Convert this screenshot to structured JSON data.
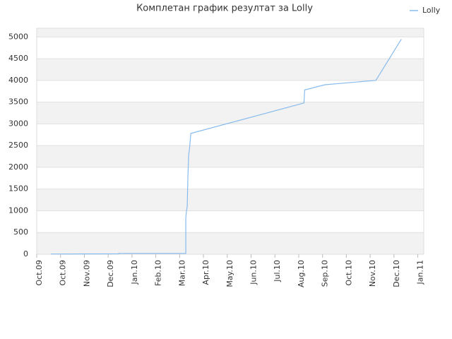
{
  "chart_data": {
    "type": "line",
    "title": "Комплетан график резултат за Lolly",
    "series": [
      {
        "name": "Lolly",
        "color": "#88bbee",
        "x": [
          0.59,
          3.44,
          3.44,
          6.26,
          6.26,
          6.29,
          6.32,
          6.35,
          6.38,
          6.41,
          6.47,
          11.22,
          11.25,
          12.1,
          14.24,
          15.31
        ],
        "values": [
          5,
          10,
          20,
          20,
          850,
          1000,
          1100,
          1800,
          2300,
          2400,
          2780,
          3480,
          3780,
          3900,
          4000,
          4950
        ]
      }
    ],
    "xlim": [
      0,
      16.25
    ],
    "xticks": [
      {
        "value": 0,
        "label": "Oct.09"
      },
      {
        "value": 1,
        "label": "Oct.09"
      },
      {
        "value": 2,
        "label": "Nov.09"
      },
      {
        "value": 3,
        "label": "Dec.09"
      },
      {
        "value": 4,
        "label": "Jan.10"
      },
      {
        "value": 5,
        "label": "Feb.10"
      },
      {
        "value": 6,
        "label": "Mar.10"
      },
      {
        "value": 7,
        "label": "Apr.10"
      },
      {
        "value": 8,
        "label": "May.10"
      },
      {
        "value": 9,
        "label": "Jun.10"
      },
      {
        "value": 10,
        "label": "Jul.10"
      },
      {
        "value": 11,
        "label": "Aug.10"
      },
      {
        "value": 12,
        "label": "Sep.10"
      },
      {
        "value": 13,
        "label": "Oct.10"
      },
      {
        "value": 14,
        "label": "Nov.10"
      },
      {
        "value": 15,
        "label": "Dec.10"
      },
      {
        "value": 16,
        "label": "Jan.11"
      }
    ],
    "ylim": [
      0,
      5200
    ],
    "yticks": [
      0,
      500,
      1000,
      1500,
      2000,
      2500,
      3000,
      3500,
      4000,
      4500,
      5000
    ],
    "grid": true,
    "legend": "top-right"
  }
}
